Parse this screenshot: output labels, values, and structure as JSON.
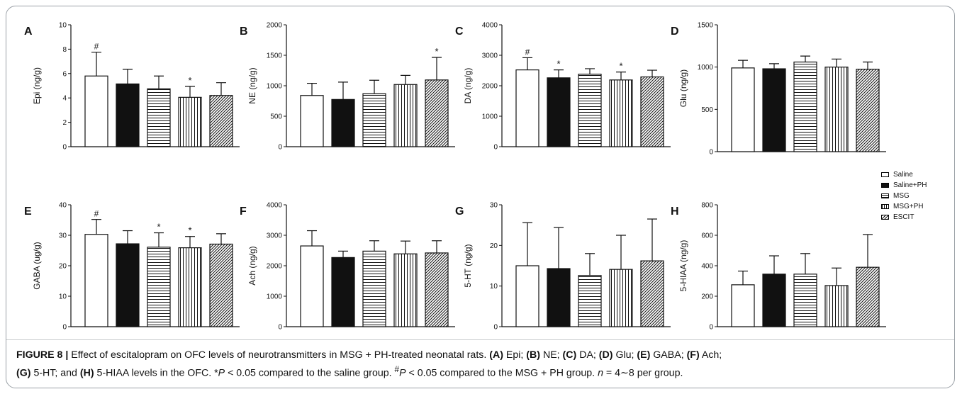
{
  "figure": {
    "caption": {
      "label": "FIGURE 8 |",
      "text1": " Effect of escitalopram on OFC levels of neurotransmitters in MSG + PH-treated neonatal rats. ",
      "A": "(A)",
      "t_A": " Epi; ",
      "B": "(B)",
      "t_B": " NE; ",
      "C": "(C)",
      "t_C": " DA; ",
      "D": "(D)",
      "t_D": " Glu; ",
      "E": "(E)",
      "t_E": " GABA; ",
      "F": "(F)",
      "t_F": " Ach;",
      "G": "(G)",
      "t_G": " 5-HT; and ",
      "H": "(H)",
      "t_H": " 5-HIAA levels in the OFC. *",
      "p1": "P",
      "t_p1": " < 0.05 compared to the saline group. ",
      "hash": "#",
      "p2": "P",
      "t_p2": " < 0.05 compared to the MSG + PH group. ",
      "n": "n",
      "t_n": " = 4∼8 per group."
    }
  },
  "legend": [
    {
      "label": "Saline",
      "pattern": "white"
    },
    {
      "label": "Saline+PH",
      "pattern": "black"
    },
    {
      "label": "MSG",
      "pattern": "hlines"
    },
    {
      "label": "MSG+PH",
      "pattern": "vlines"
    },
    {
      "label": "ESCIT",
      "pattern": "diag"
    }
  ],
  "colors": {
    "ink": "#111111",
    "frame": "#9aa0a6"
  },
  "chart_data": [
    {
      "type": "bar",
      "panel": "A",
      "ylabel": "Epi (ng/g)",
      "ylim": [
        0,
        10
      ],
      "ticks": [
        0,
        2,
        4,
        6,
        8,
        10
      ],
      "categories": [
        "Saline",
        "Saline+PH",
        "MSG",
        "MSG+PH",
        "ESCIT"
      ],
      "values": [
        5.8,
        5.15,
        4.75,
        4.05,
        4.2
      ],
      "errors": [
        1.95,
        1.2,
        1.05,
        0.9,
        1.05
      ],
      "annotations": [
        "#",
        "",
        "",
        "*",
        ""
      ]
    },
    {
      "type": "bar",
      "panel": "B",
      "ylabel": "NE (ng/g)",
      "ylim": [
        0,
        2000
      ],
      "ticks": [
        0,
        500,
        1000,
        1500,
        2000
      ],
      "categories": [
        "Saline",
        "Saline+PH",
        "MSG",
        "MSG+PH",
        "ESCIT"
      ],
      "values": [
        840,
        775,
        870,
        1020,
        1095
      ],
      "errors": [
        200,
        285,
        220,
        150,
        370
      ],
      "annotations": [
        "",
        "",
        "",
        "",
        "*"
      ]
    },
    {
      "type": "bar",
      "panel": "C",
      "ylabel": "DA (ng/g)",
      "ylim": [
        0,
        4000
      ],
      "ticks": [
        0,
        1000,
        2000,
        3000,
        4000
      ],
      "categories": [
        "Saline",
        "Saline+PH",
        "MSG",
        "MSG+PH",
        "ESCIT"
      ],
      "values": [
        2520,
        2260,
        2380,
        2190,
        2290
      ],
      "errors": [
        400,
        260,
        180,
        260,
        220
      ],
      "annotations": [
        "#",
        "*",
        "",
        "*",
        ""
      ]
    },
    {
      "type": "bar",
      "panel": "D",
      "ylabel": "Glu (ng/g)",
      "ylim": [
        0,
        1500
      ],
      "ticks": [
        0,
        500,
        1000,
        1500
      ],
      "categories": [
        "Saline",
        "Saline+PH",
        "MSG",
        "MSG+PH",
        "ESCIT"
      ],
      "values": [
        990,
        980,
        1060,
        1000,
        975
      ],
      "errors": [
        90,
        60,
        70,
        95,
        85
      ],
      "annotations": [
        "",
        "",
        "",
        "",
        ""
      ]
    },
    {
      "type": "bar",
      "panel": "E",
      "ylabel": "GABA (ug/g)",
      "ylim": [
        0,
        40
      ],
      "ticks": [
        0,
        10,
        20,
        30,
        40
      ],
      "categories": [
        "Saline",
        "Saline+PH",
        "MSG",
        "MSG+PH",
        "ESCIT"
      ],
      "values": [
        30.3,
        27.2,
        26.1,
        25.9,
        27.1
      ],
      "errors": [
        4.9,
        4.3,
        4.7,
        3.7,
        3.4
      ],
      "annotations": [
        "#",
        "",
        "*",
        "*",
        ""
      ]
    },
    {
      "type": "bar",
      "panel": "F",
      "ylabel": "Ach (ng/g)",
      "ylim": [
        0,
        4000
      ],
      "ticks": [
        0,
        1000,
        2000,
        3000,
        4000
      ],
      "categories": [
        "Saline",
        "Saline+PH",
        "MSG",
        "MSG+PH",
        "ESCIT"
      ],
      "values": [
        2650,
        2270,
        2480,
        2390,
        2420
      ],
      "errors": [
        500,
        210,
        340,
        420,
        400
      ],
      "annotations": [
        "",
        "",
        "",
        "",
        ""
      ]
    },
    {
      "type": "bar",
      "panel": "G",
      "ylabel": "5-HT (ng/g)",
      "ylim": [
        0,
        30
      ],
      "ticks": [
        0,
        10,
        20,
        30
      ],
      "categories": [
        "Saline",
        "Saline+PH",
        "MSG",
        "MSG+PH",
        "ESCIT"
      ],
      "values": [
        15.0,
        14.3,
        12.6,
        14.1,
        16.2
      ],
      "errors": [
        10.6,
        10.1,
        5.4,
        8.4,
        10.3
      ],
      "annotations": [
        "",
        "",
        "",
        "",
        ""
      ]
    },
    {
      "type": "bar",
      "panel": "H",
      "ylabel": "5-HIAA (ng/g)",
      "ylim": [
        0,
        800
      ],
      "ticks": [
        0,
        200,
        400,
        600,
        800
      ],
      "categories": [
        "Saline",
        "Saline+PH",
        "MSG",
        "MSG+PH",
        "ESCIT"
      ],
      "values": [
        275,
        345,
        345,
        270,
        390
      ],
      "errors": [
        90,
        120,
        135,
        115,
        215
      ],
      "annotations": [
        "",
        "",
        "",
        "",
        ""
      ]
    }
  ]
}
